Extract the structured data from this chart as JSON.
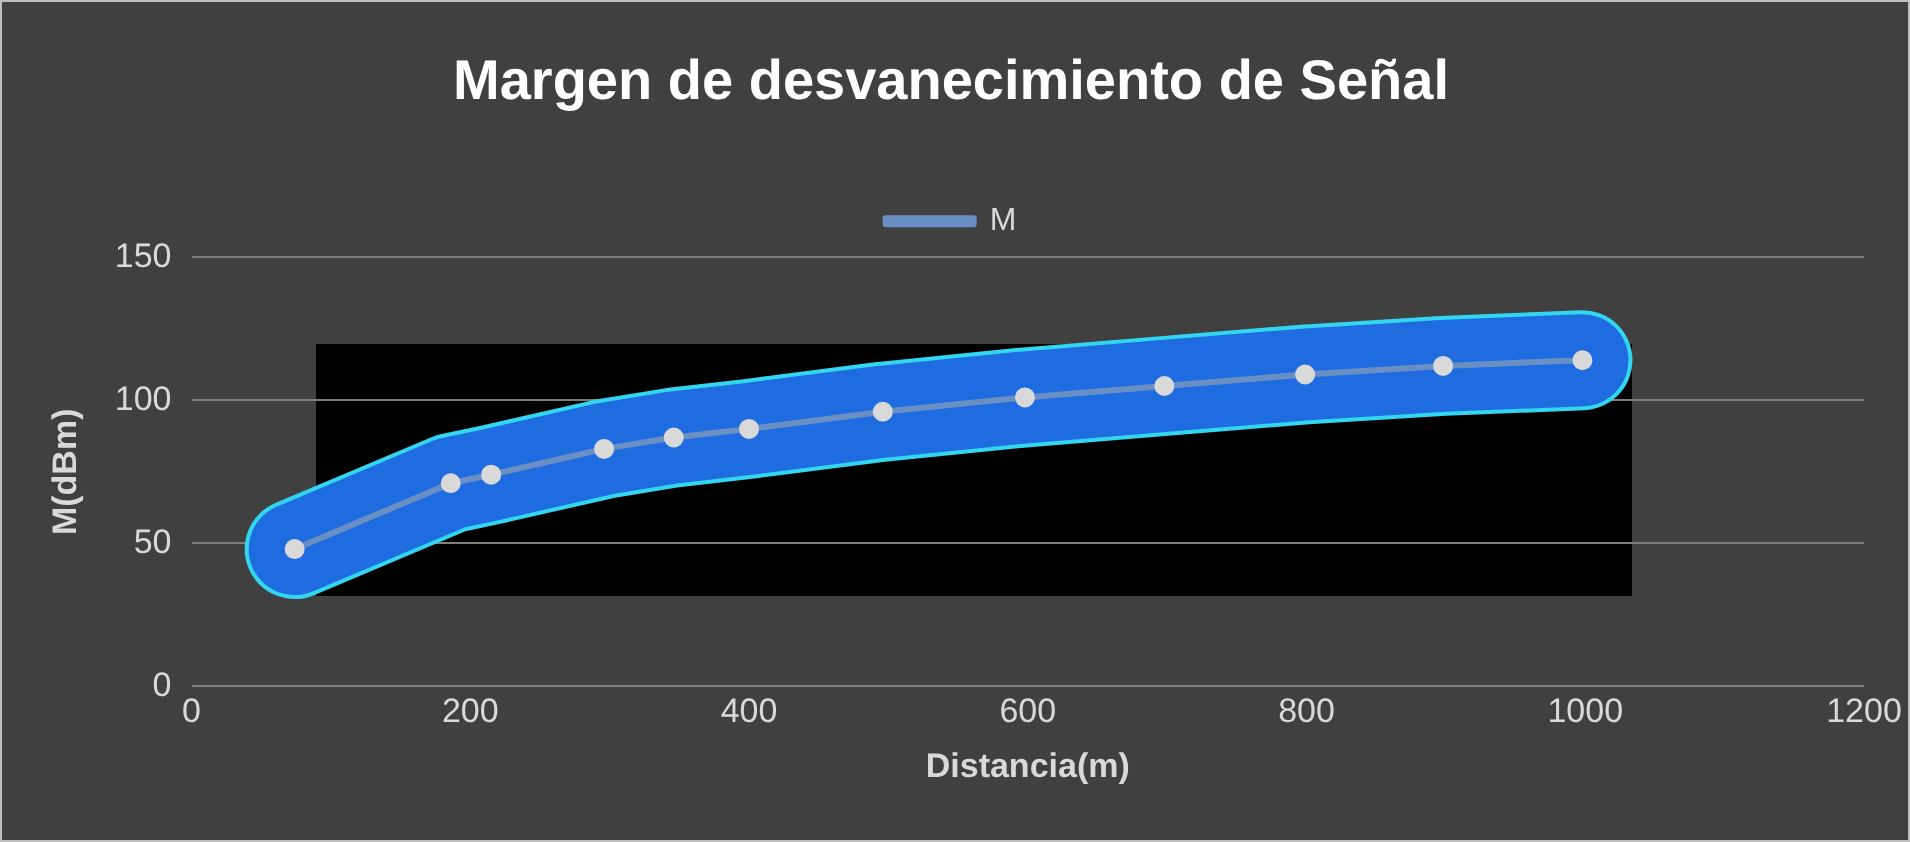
{
  "chart_data": {
    "type": "line",
    "title": "Margen de desvanecimiento de Señal",
    "xlabel": "Distancia(m)",
    "ylabel": "M(dBm)",
    "x": [
      74,
      186,
      215,
      296,
      346,
      400,
      496,
      598,
      698,
      799,
      898,
      998
    ],
    "series": [
      {
        "name": "M",
        "color": "#6a8fc4",
        "values": [
          48,
          71,
          74,
          83,
          87,
          90,
          96,
          101,
          105,
          109,
          112,
          114
        ]
      }
    ],
    "xlim": [
      0,
      1200
    ],
    "xticks": [
      0,
      200,
      400,
      600,
      800,
      1000,
      1200
    ],
    "ylim": [
      0,
      150
    ],
    "yticks": [
      0,
      50,
      100,
      150
    ],
    "grid": "y",
    "legend": "top",
    "marker": "circle",
    "line_style": "solid"
  }
}
